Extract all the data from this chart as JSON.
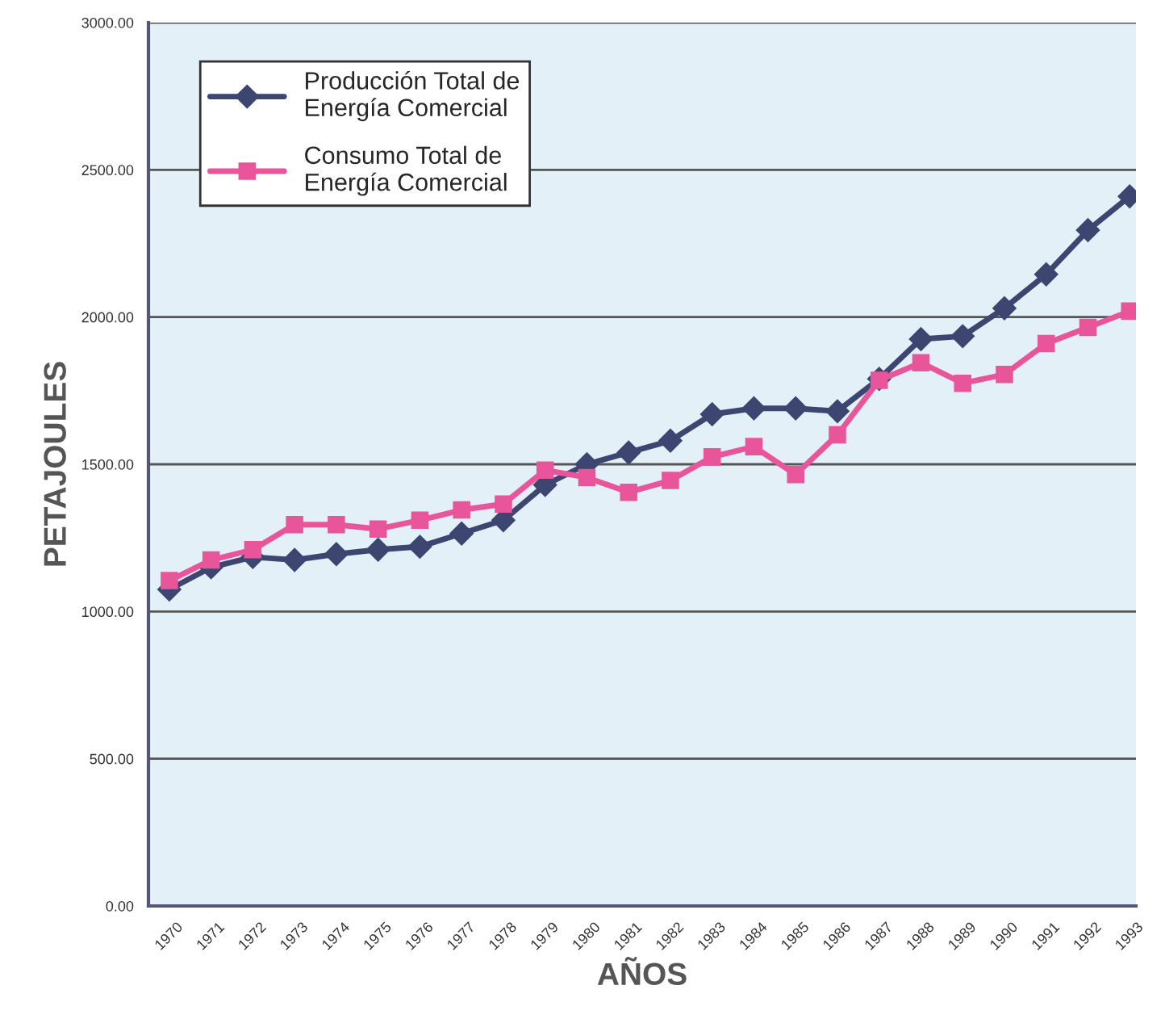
{
  "chart_data": {
    "type": "line",
    "xlabel": "AÑOS",
    "ylabel": "PETAJOULES",
    "x": [
      1970,
      1971,
      1972,
      1973,
      1974,
      1975,
      1976,
      1977,
      1978,
      1979,
      1980,
      1981,
      1982,
      1983,
      1984,
      1985,
      1986,
      1987,
      1988,
      1989,
      1990,
      1991,
      1992,
      1993
    ],
    "xlim": [
      1969.5,
      1993.15
    ],
    "xticks": [
      1970,
      1971,
      1972,
      1973,
      1974,
      1975,
      1976,
      1977,
      1978,
      1979,
      1980,
      1981,
      1982,
      1983,
      1984,
      1985,
      1986,
      1987,
      1988,
      1989,
      1990,
      1991,
      1992,
      1993
    ],
    "ylim": [
      0,
      3000
    ],
    "yticks": [
      {
        "value": 0,
        "label": "0.00"
      },
      {
        "value": 500,
        "label": "500.00"
      },
      {
        "value": 1000,
        "label": "1000.00"
      },
      {
        "value": 1500,
        "label": "1500.00"
      },
      {
        "value": 2000,
        "label": "2000.00"
      },
      {
        "value": 2500,
        "label": "2500.00"
      },
      {
        "value": 3000,
        "label": "3000.00"
      }
    ],
    "grid": "y",
    "legend": "top left",
    "series": [
      {
        "name": "Producción Total de\nEnergía Comercial",
        "color": "#3c4670",
        "marker": "diamond",
        "values": [
          1075,
          1150,
          1185,
          1175,
          1195,
          1210,
          1220,
          1265,
          1310,
          1430,
          1500,
          1540,
          1580,
          1670,
          1690,
          1690,
          1680,
          1790,
          1925,
          1935,
          2030,
          2145,
          2295,
          2410
        ]
      },
      {
        "name": "Consumo Total de\nEnergía Comercial",
        "color": "#e8559a",
        "marker": "square",
        "values": [
          1105,
          1175,
          1210,
          1295,
          1295,
          1280,
          1310,
          1345,
          1365,
          1480,
          1455,
          1405,
          1445,
          1525,
          1560,
          1465,
          1600,
          1785,
          1845,
          1775,
          1805,
          1910,
          1965,
          2020
        ]
      }
    ]
  }
}
